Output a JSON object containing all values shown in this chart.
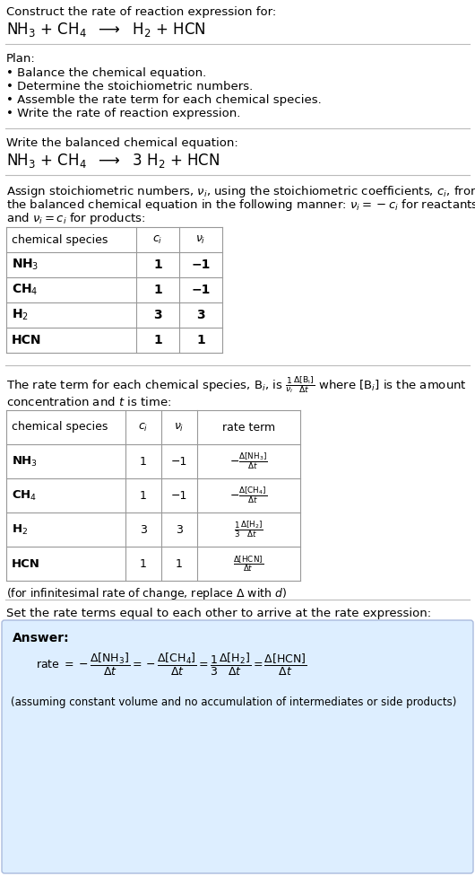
{
  "bg_color": "#ffffff",
  "text_color": "#000000",
  "table_border_color": "#999999",
  "answer_box_color": "#ddeeff",
  "answer_box_border": "#aabbdd",
  "title_text": "Construct the rate of reaction expression for:",
  "plan_header": "Plan:",
  "plan_bullets": [
    "• Balance the chemical equation.",
    "• Determine the stoichiometric numbers.",
    "• Assemble the rate term for each chemical species.",
    "• Write the rate of reaction expression."
  ],
  "balanced_header": "Write the balanced chemical equation:",
  "stoich_intro_line1": "Assign stoichiometric numbers, $\\nu_i$, using the stoichiometric coefficients, $c_i$, from",
  "stoich_intro_line2": "the balanced chemical equation in the following manner: $\\nu_i = -c_i$ for reactants",
  "stoich_intro_line3": "and $\\nu_i = c_i$ for products:",
  "table1_headers": [
    "chemical species",
    "$c_i$",
    "$\\nu_i$"
  ],
  "table1_data": [
    [
      "NH$_3$",
      "1",
      "−1"
    ],
    [
      "CH$_4$",
      "1",
      "−1"
    ],
    [
      "H$_2$",
      "3",
      "3"
    ],
    [
      "HCN",
      "1",
      "1"
    ]
  ],
  "rate_intro_line1": "The rate term for each chemical species, B$_i$, is $\\frac{1}{\\nu_i}\\frac{\\Delta[\\mathrm{B_i}]}{\\Delta t}$ where [B$_i$] is the amount",
  "rate_intro_line2": "concentration and $t$ is time:",
  "table2_headers": [
    "chemical species",
    "$c_i$",
    "$\\nu_i$",
    "rate term"
  ],
  "table2_data": [
    [
      "NH$_3$",
      "1",
      "−1",
      "$-\\frac{\\Delta[\\mathrm{NH_3}]}{\\Delta t}$"
    ],
    [
      "CH$_4$",
      "1",
      "−1",
      "$-\\frac{\\Delta[\\mathrm{CH_4}]}{\\Delta t}$"
    ],
    [
      "H$_2$",
      "3",
      "3",
      "$\\frac{1}{3}\\frac{\\Delta[\\mathrm{H_2}]}{\\Delta t}$"
    ],
    [
      "HCN",
      "1",
      "1",
      "$\\frac{\\Delta[\\mathrm{HCN}]}{\\Delta t}$"
    ]
  ],
  "infinitesimal_note": "(for infinitesimal rate of change, replace Δ with $d$)",
  "set_equal_text": "Set the rate terms equal to each other to arrive at the rate expression:",
  "answer_label": "Answer:",
  "answer_note": "(assuming constant volume and no accumulation of intermediates or side products)"
}
